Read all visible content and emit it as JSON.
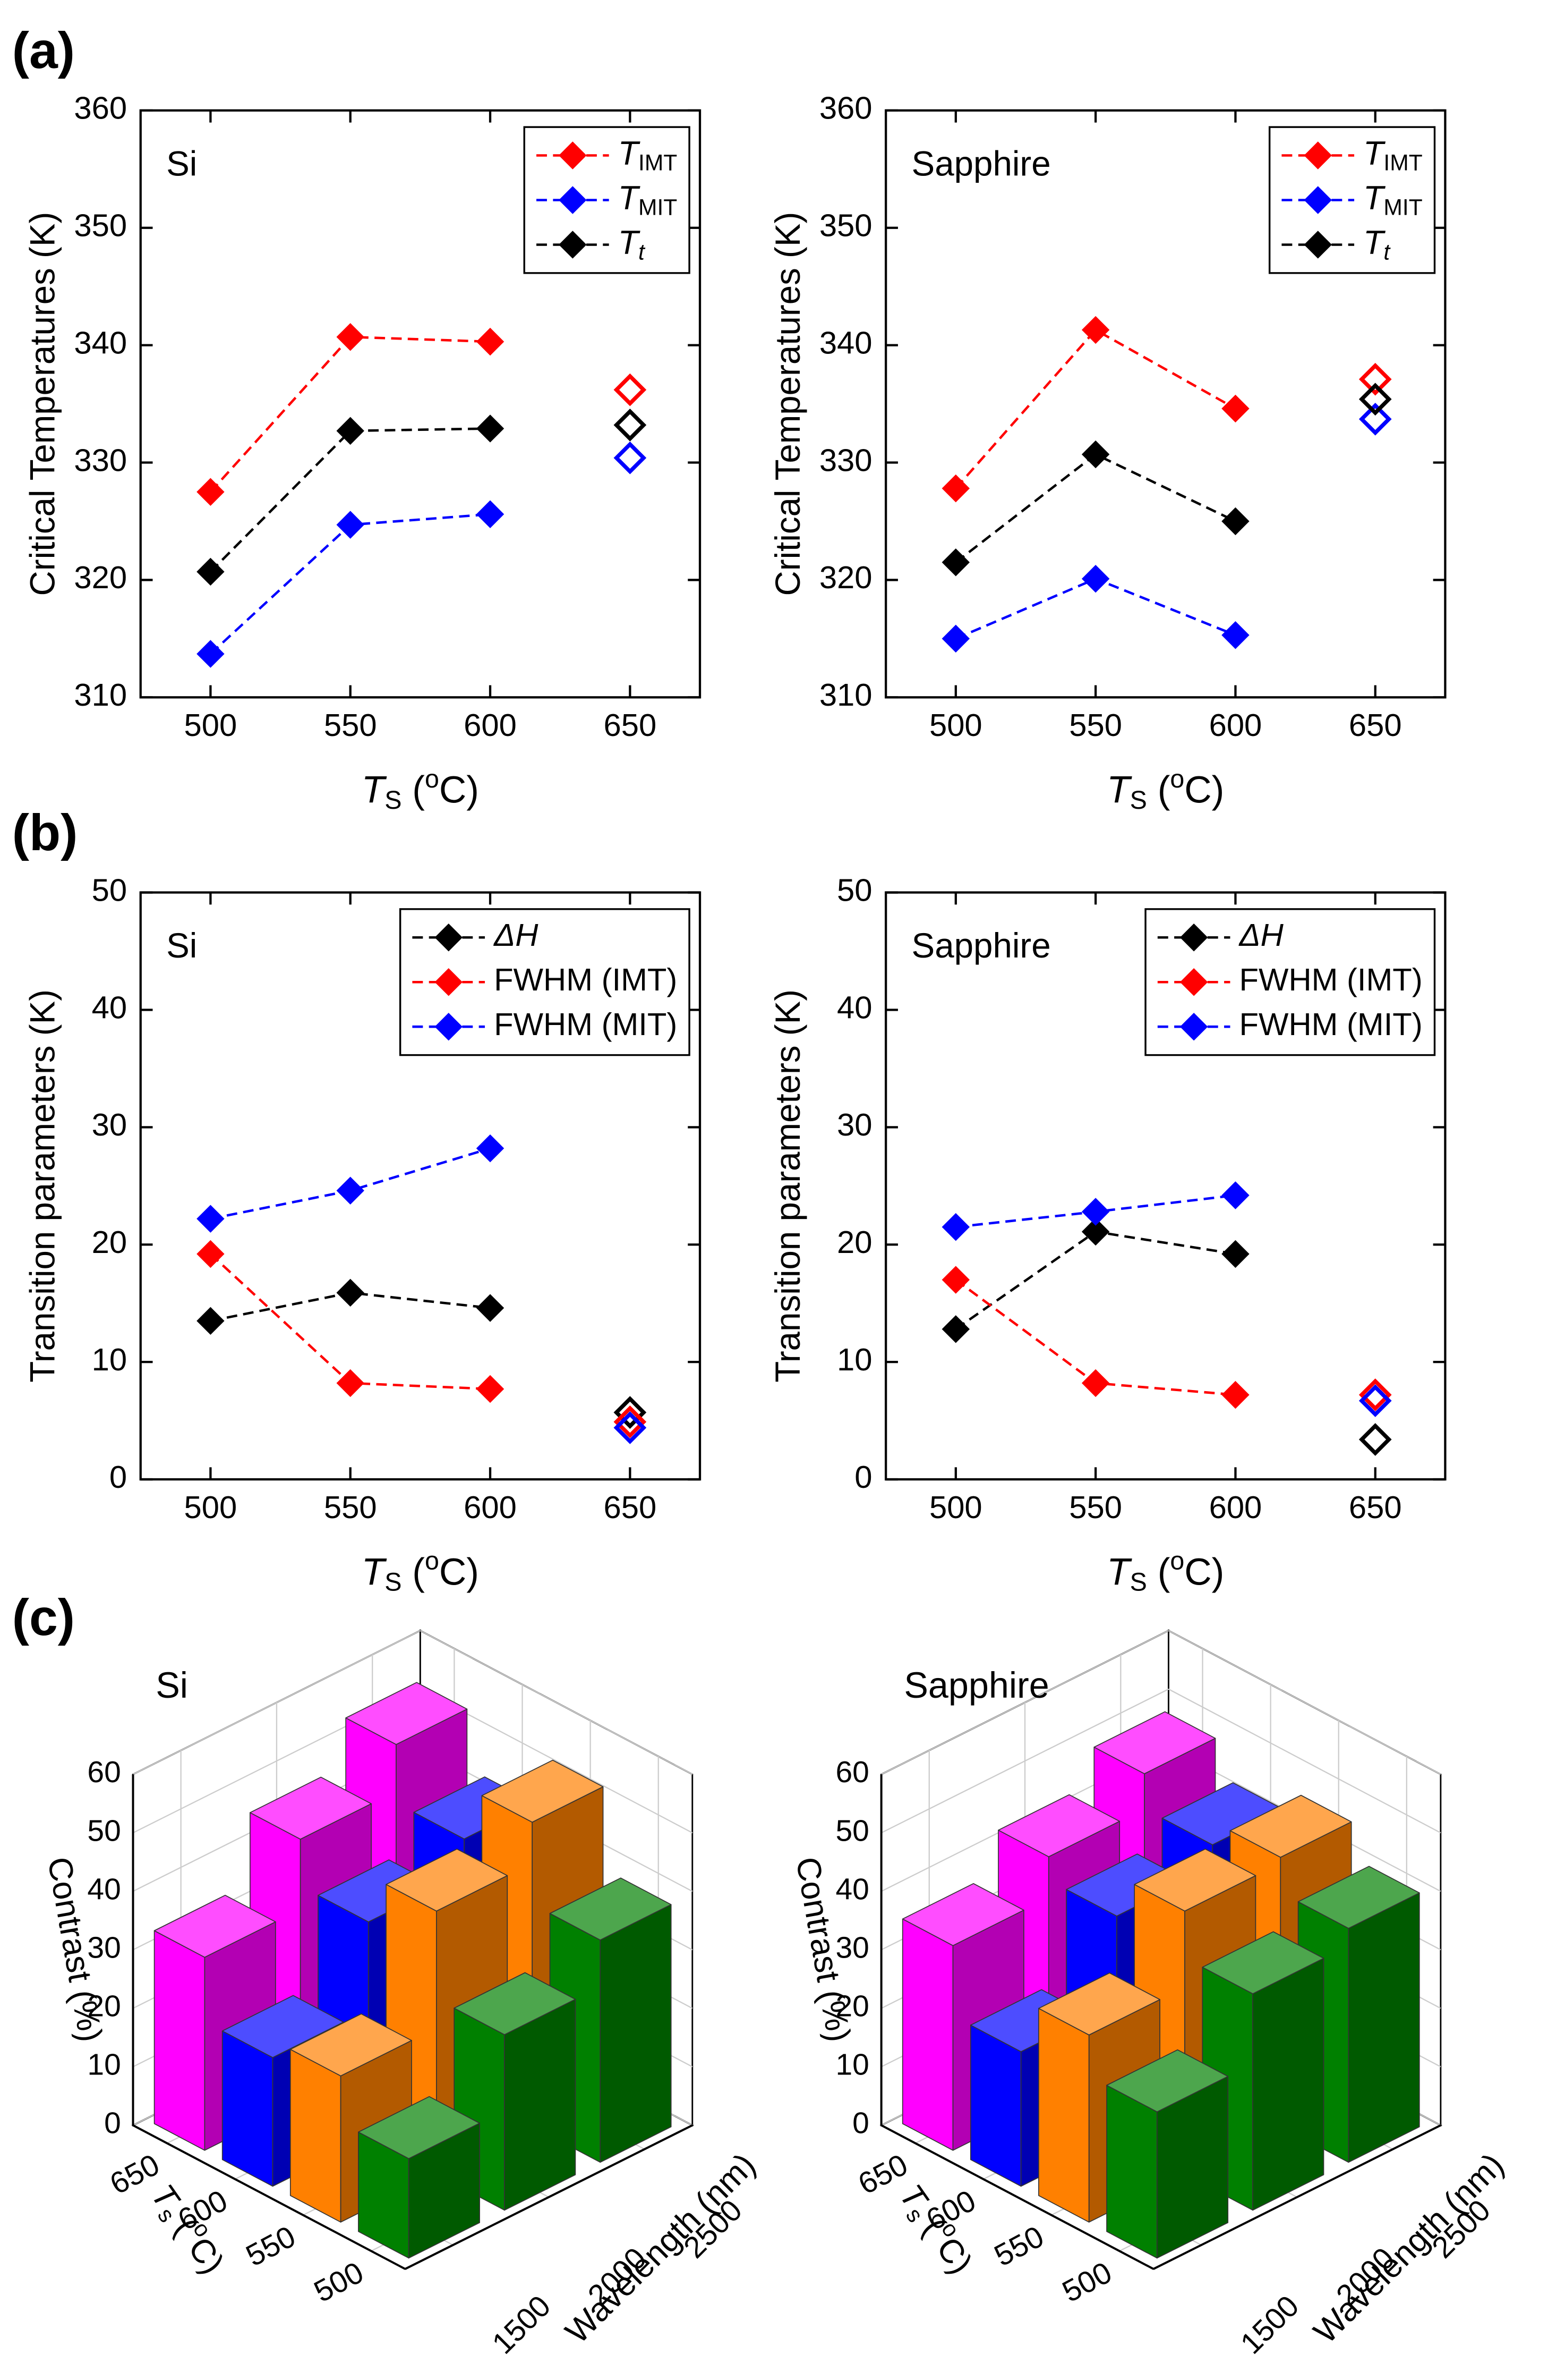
{
  "panel_labels": [
    "(a)",
    "(b)",
    "(c)"
  ],
  "chart_data": [
    {
      "type": "line",
      "title": "Si",
      "xlabel": [
        "T",
        "S",
        " (",
        "o",
        "C)"
      ],
      "ylabel": "Critical Temperatures (K)",
      "x": [
        500,
        550,
        600,
        650
      ],
      "xlim": [
        475,
        675
      ],
      "xticks": [
        500,
        550,
        600,
        650
      ],
      "ylim": [
        310,
        360
      ],
      "yticks": [
        310,
        320,
        330,
        340,
        350,
        360
      ],
      "markers": [
        "filled",
        "filled",
        "filled",
        "open"
      ],
      "legend": "upper right",
      "series": [
        {
          "name": [
            "T",
            "IMT"
          ],
          "color": "#ff0000",
          "values": [
            327.5,
            340.7,
            340.3,
            336.2
          ]
        },
        {
          "name": [
            "T",
            "MIT"
          ],
          "color": "#0000ff",
          "values": [
            313.7,
            324.7,
            325.6,
            330.4
          ]
        },
        {
          "name": [
            "T",
            "t"
          ],
          "color": "#000000",
          "values": [
            320.7,
            332.7,
            332.9,
            333.2
          ]
        }
      ]
    },
    {
      "type": "line",
      "title": "Sapphire",
      "xlabel": [
        "T",
        "S",
        " (",
        "o",
        "C)"
      ],
      "ylabel": "Critical Temperatures (K)",
      "x": [
        500,
        550,
        600,
        650
      ],
      "xlim": [
        475,
        675
      ],
      "xticks": [
        500,
        550,
        600,
        650
      ],
      "ylim": [
        310,
        360
      ],
      "yticks": [
        310,
        320,
        330,
        340,
        350,
        360
      ],
      "markers": [
        "filled",
        "filled",
        "filled",
        "open"
      ],
      "legend": "upper right",
      "series": [
        {
          "name": [
            "T",
            "IMT"
          ],
          "color": "#ff0000",
          "values": [
            327.8,
            341.3,
            334.6,
            337.1
          ]
        },
        {
          "name": [
            "T",
            "MIT"
          ],
          "color": "#0000ff",
          "values": [
            315.0,
            320.1,
            315.3,
            333.7
          ]
        },
        {
          "name": [
            "T",
            "t"
          ],
          "color": "#000000",
          "values": [
            321.5,
            330.7,
            325.0,
            335.4
          ]
        }
      ]
    },
    {
      "type": "line",
      "title": "Si",
      "xlabel": [
        "T",
        "S",
        " (",
        "o",
        "C)"
      ],
      "ylabel": "Transition parameters (K)",
      "x": [
        500,
        550,
        600,
        650
      ],
      "xlim": [
        475,
        675
      ],
      "xticks": [
        500,
        550,
        600,
        650
      ],
      "ylim": [
        0,
        50
      ],
      "yticks": [
        0,
        10,
        20,
        30,
        40,
        50
      ],
      "markers": [
        "filled",
        "filled",
        "filled",
        "open"
      ],
      "legend": "upper right",
      "series": [
        {
          "name": "ΔH",
          "name_style": "italic",
          "color": "#000000",
          "values": [
            13.5,
            15.9,
            14.6,
            5.7
          ]
        },
        {
          "name": "FWHM (IMT)",
          "color": "#ff0000",
          "values": [
            19.2,
            8.2,
            7.7,
            4.9
          ]
        },
        {
          "name": "FWHM (MIT)",
          "color": "#0000ff",
          "values": [
            22.2,
            24.6,
            28.2,
            4.4
          ]
        }
      ]
    },
    {
      "type": "line",
      "title": "Sapphire",
      "xlabel": [
        "T",
        "S",
        " (",
        "o",
        "C)"
      ],
      "ylabel": "Transition parameters (K)",
      "x": [
        500,
        550,
        600,
        650
      ],
      "xlim": [
        475,
        675
      ],
      "xticks": [
        500,
        550,
        600,
        650
      ],
      "ylim": [
        0,
        50
      ],
      "yticks": [
        0,
        10,
        20,
        30,
        40,
        50
      ],
      "markers": [
        "filled",
        "filled",
        "filled",
        "open"
      ],
      "legend": "upper right",
      "series": [
        {
          "name": "ΔH",
          "name_style": "italic",
          "color": "#000000",
          "values": [
            12.8,
            21.1,
            19.2,
            3.4
          ]
        },
        {
          "name": "FWHM (IMT)",
          "color": "#ff0000",
          "values": [
            17.0,
            8.2,
            7.2,
            7.2
          ]
        },
        {
          "name": "FWHM (MIT)",
          "color": "#0000ff",
          "values": [
            21.5,
            22.8,
            24.2,
            6.7
          ]
        }
      ]
    },
    {
      "type": "bar3d",
      "title": "Si",
      "xlabel": [
        "T",
        "s",
        " (",
        "o",
        "C)"
      ],
      "ylabel": "Wavelength (nm)",
      "zlabel": "Contrast (%)",
      "x": [
        500,
        550,
        600,
        650
      ],
      "y": [
        1500,
        2000,
        2500
      ],
      "zlim": [
        0,
        60
      ],
      "zticks": [
        0,
        10,
        20,
        30,
        40,
        50,
        60
      ],
      "colors": [
        "#008000",
        "#ff8000",
        "#0000ff",
        "#ff00ff"
      ],
      "values": [
        [
          17,
          30,
          38
        ],
        [
          25,
          45,
          52
        ],
        [
          22,
          37,
          43
        ],
        [
          33,
          45,
          53
        ]
      ]
    },
    {
      "type": "bar3d",
      "title": "Sapphire",
      "xlabel": [
        "T",
        "s",
        " (",
        "o",
        "C)"
      ],
      "ylabel": "Wavelength (nm)",
      "zlabel": "Contrast (%)",
      "x": [
        500,
        550,
        600,
        650
      ],
      "y": [
        1500,
        2000,
        2500
      ],
      "zlim": [
        0,
        60
      ],
      "zticks": [
        0,
        10,
        20,
        30,
        40,
        50,
        60
      ],
      "colors": [
        "#008000",
        "#ff8000",
        "#0000ff",
        "#ff00ff"
      ],
      "values": [
        [
          25,
          37,
          40
        ],
        [
          32,
          45,
          46
        ],
        [
          23,
          38,
          42
        ],
        [
          35,
          42,
          48
        ]
      ]
    }
  ]
}
